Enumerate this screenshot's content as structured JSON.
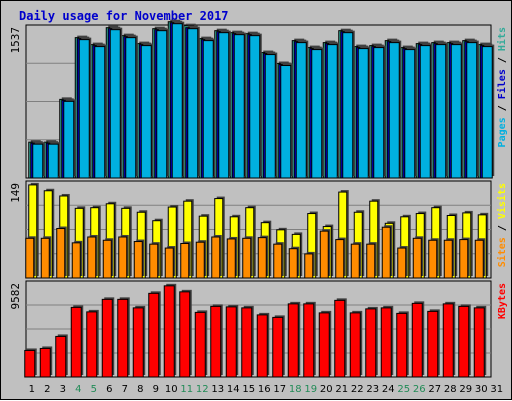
{
  "title": "Daily usage for November 2017",
  "colors": {
    "background": "#c0c0c0",
    "title": "#0000cc",
    "pages": "#00b0e0",
    "files": "#0000cc",
    "hits": "#33aa99",
    "visits": "#ffff00",
    "sites": "#ff8c00",
    "kbytes": "#ff0000",
    "weekend": "#228b57"
  },
  "chart_data": [
    {
      "type": "bar",
      "title": "Daily usage for November 2017",
      "panel": "top",
      "y_tick": "1537",
      "ylim": [
        0,
        1537
      ],
      "right_labels": [
        {
          "text": "Pages",
          "color": "#00b0e0"
        },
        {
          "text": " / ",
          "color": "#000000"
        },
        {
          "text": "Files",
          "color": "#0000cc"
        },
        {
          "text": " / ",
          "color": "#000000"
        },
        {
          "text": "Hits",
          "color": "#33aa99"
        }
      ],
      "categories": [
        1,
        2,
        3,
        4,
        5,
        6,
        7,
        8,
        9,
        10,
        11,
        12,
        13,
        14,
        15,
        16,
        17,
        18,
        19,
        20,
        21,
        22,
        23,
        24,
        25,
        26,
        27,
        28,
        29,
        30
      ],
      "series": [
        {
          "name": "Hits",
          "values": [
            360,
            360,
            790,
            1410,
            1340,
            1510,
            1430,
            1350,
            1500,
            1570,
            1530,
            1400,
            1480,
            1460,
            1450,
            1260,
            1150,
            1380,
            1310,
            1360,
            1480,
            1320,
            1330,
            1380,
            1310,
            1350,
            1360,
            1360,
            1380,
            1340
          ]
        },
        {
          "name": "Files",
          "values": [
            350,
            350,
            780,
            1400,
            1330,
            1500,
            1420,
            1340,
            1490,
            1560,
            1510,
            1390,
            1470,
            1450,
            1440,
            1250,
            1140,
            1370,
            1300,
            1350,
            1470,
            1310,
            1320,
            1370,
            1300,
            1340,
            1350,
            1350,
            1370,
            1330
          ]
        },
        {
          "name": "Pages",
          "values": [
            340,
            340,
            770,
            1390,
            1320,
            1490,
            1410,
            1330,
            1480,
            1550,
            1500,
            1380,
            1460,
            1440,
            1430,
            1240,
            1130,
            1360,
            1290,
            1340,
            1460,
            1300,
            1310,
            1360,
            1290,
            1330,
            1340,
            1340,
            1360,
            1320
          ]
        }
      ]
    },
    {
      "type": "bar",
      "panel": "middle",
      "y_tick": "149",
      "ylim": [
        0,
        149
      ],
      "right_labels": [
        {
          "text": "Sites",
          "color": "#ff8c00"
        },
        {
          "text": " / ",
          "color": "#000000"
        },
        {
          "text": "Visits",
          "color": "#ffff00"
        }
      ],
      "categories": [
        1,
        2,
        3,
        4,
        5,
        6,
        7,
        8,
        9,
        10,
        11,
        12,
        13,
        14,
        15,
        16,
        17,
        18,
        19,
        20,
        21,
        22,
        23,
        24,
        25,
        26,
        27,
        28,
        29,
        30
      ],
      "series": [
        {
          "name": "Visits",
          "values": [
            143,
            134,
            126,
            107,
            108,
            114,
            107,
            101,
            88,
            109,
            118,
            95,
            122,
            94,
            108,
            85,
            74,
            67,
            99,
            79,
            132,
            101,
            118,
            84,
            94,
            99,
            108,
            96,
            100,
            97
          ]
        },
        {
          "name": "Sites",
          "values": [
            61,
            61,
            76,
            54,
            63,
            58,
            63,
            56,
            52,
            46,
            53,
            55,
            63,
            60,
            61,
            62,
            52,
            45,
            37,
            72,
            59,
            52,
            52,
            78,
            46,
            61,
            58,
            58,
            59,
            58
          ]
        }
      ]
    },
    {
      "type": "bar",
      "panel": "bottom",
      "y_tick": "9582",
      "ylim": [
        0,
        9582
      ],
      "right_labels": [
        {
          "text": "KBytes",
          "color": "#ff0000"
        }
      ],
      "categories": [
        1,
        2,
        3,
        4,
        5,
        6,
        7,
        8,
        9,
        10,
        11,
        12,
        13,
        14,
        15,
        16,
        17,
        18,
        19,
        20,
        21,
        22,
        23,
        24,
        25,
        26,
        27,
        28,
        29,
        30
      ],
      "series": [
        {
          "name": "KBytes",
          "values": [
            2650,
            2850,
            4050,
            6950,
            6500,
            7750,
            7750,
            6900,
            8350,
            9100,
            8500,
            6450,
            7050,
            7000,
            6900,
            6200,
            5950,
            7300,
            7300,
            6400,
            7650,
            6400,
            6800,
            6900,
            6350,
            7350,
            6550,
            7300,
            7050,
            6900
          ]
        }
      ]
    }
  ],
  "x_axis": {
    "labels": [
      "1",
      "2",
      "3",
      "4",
      "5",
      "6",
      "7",
      "8",
      "9",
      "10",
      "11",
      "12",
      "13",
      "14",
      "15",
      "16",
      "17",
      "18",
      "19",
      "20",
      "21",
      "22",
      "23",
      "24",
      "25",
      "26",
      "27",
      "28",
      "29",
      "30",
      "31"
    ],
    "weekend_days": [
      4,
      5,
      11,
      12,
      18,
      19,
      25,
      26
    ]
  }
}
